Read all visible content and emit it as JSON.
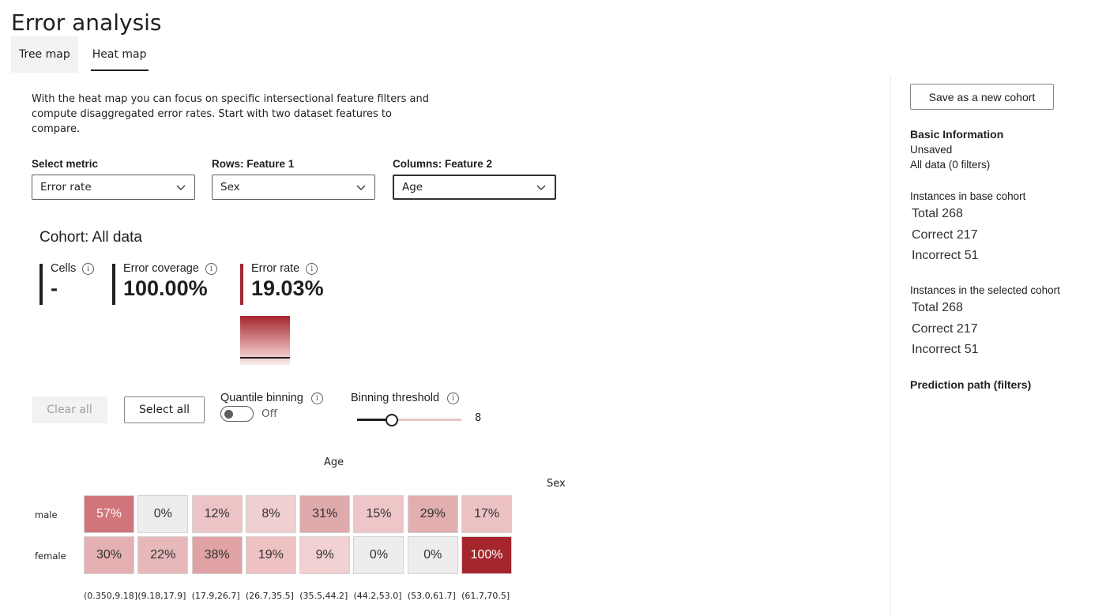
{
  "page": {
    "title": "Error analysis"
  },
  "tabs": [
    {
      "label": "Tree map",
      "active": false
    },
    {
      "label": "Heat map",
      "active": true
    }
  ],
  "intro": "With the heat map you can focus on specific intersectional feature filters and compute disaggregated error rates. Start with two dataset features to compare.",
  "dropdowns": {
    "metric": {
      "label": "Select metric",
      "value": "Error rate"
    },
    "rows": {
      "label": "Rows: Feature 1",
      "value": "Sex"
    },
    "columns": {
      "label": "Columns: Feature 2",
      "value": "Age"
    }
  },
  "cohort": {
    "title": "Cohort: All data",
    "cells_label": "Cells",
    "cells_value": "-",
    "coverage_label": "Error coverage",
    "coverage_value": "100.00%",
    "rate_label": "Error rate",
    "rate_value": "19.03%"
  },
  "controls": {
    "clear_all": "Clear all",
    "select_all": "Select all",
    "quantile_label": "Quantile binning",
    "quantile_state": "Off",
    "threshold_label": "Binning threshold",
    "threshold_value": "8",
    "threshold_fraction": 0.33
  },
  "heatmap": {
    "column_axis": "Age",
    "row_axis": "Sex",
    "rows": [
      "male",
      "female"
    ],
    "columns": [
      "(0.350,9.18]",
      "(9.18,17.9]",
      "(17.9,26.7]",
      "(26.7,35.5]",
      "(35.5,44.2]",
      "(44.2,53.0]",
      "(53.0,61.7]",
      "(61.7,70.5]"
    ],
    "values": [
      [
        "57%",
        "0%",
        "12%",
        "8%",
        "31%",
        "15%",
        "29%",
        "17%"
      ],
      [
        "30%",
        "22%",
        "38%",
        "19%",
        "9%",
        "0%",
        "0%",
        "100%"
      ]
    ],
    "colors": [
      [
        "#d07579",
        "#efedec",
        "#ecc4c6",
        "#f0cfd0",
        "#deaaab",
        "#eec6c8",
        "#e2aeaf",
        "#ecc1c3"
      ],
      [
        "#e4b0b2",
        "#e6b8ba",
        "#e0a2a5",
        "#eec1c3",
        "#f1d1d2",
        "#efedec",
        "#efedec",
        "#a4262c"
      ]
    ],
    "text_colors": [
      [
        "#ffffff",
        "#323130",
        "#323130",
        "#323130",
        "#323130",
        "#323130",
        "#323130",
        "#323130"
      ],
      [
        "#323130",
        "#323130",
        "#323130",
        "#323130",
        "#323130",
        "#323130",
        "#323130",
        "#ffffff"
      ]
    ]
  },
  "right_panel": {
    "save_button": "Save as a new cohort",
    "basic_info_heading": "Basic Information",
    "cohort_name": "Unsaved",
    "cohort_filters": "All data (0 filters)",
    "base_heading": "Instances in base cohort",
    "base_total": "Total 268",
    "base_correct": "Correct 217",
    "base_incorrect": "Incorrect 51",
    "selected_heading": "Instances in the selected cohort",
    "selected_total": "Total 268",
    "selected_correct": "Correct 217",
    "selected_incorrect": "Incorrect 51",
    "prediction_path_heading": "Prediction path (filters)"
  },
  "colors": {
    "accent": "#a4262c",
    "text": "#201f1e"
  }
}
